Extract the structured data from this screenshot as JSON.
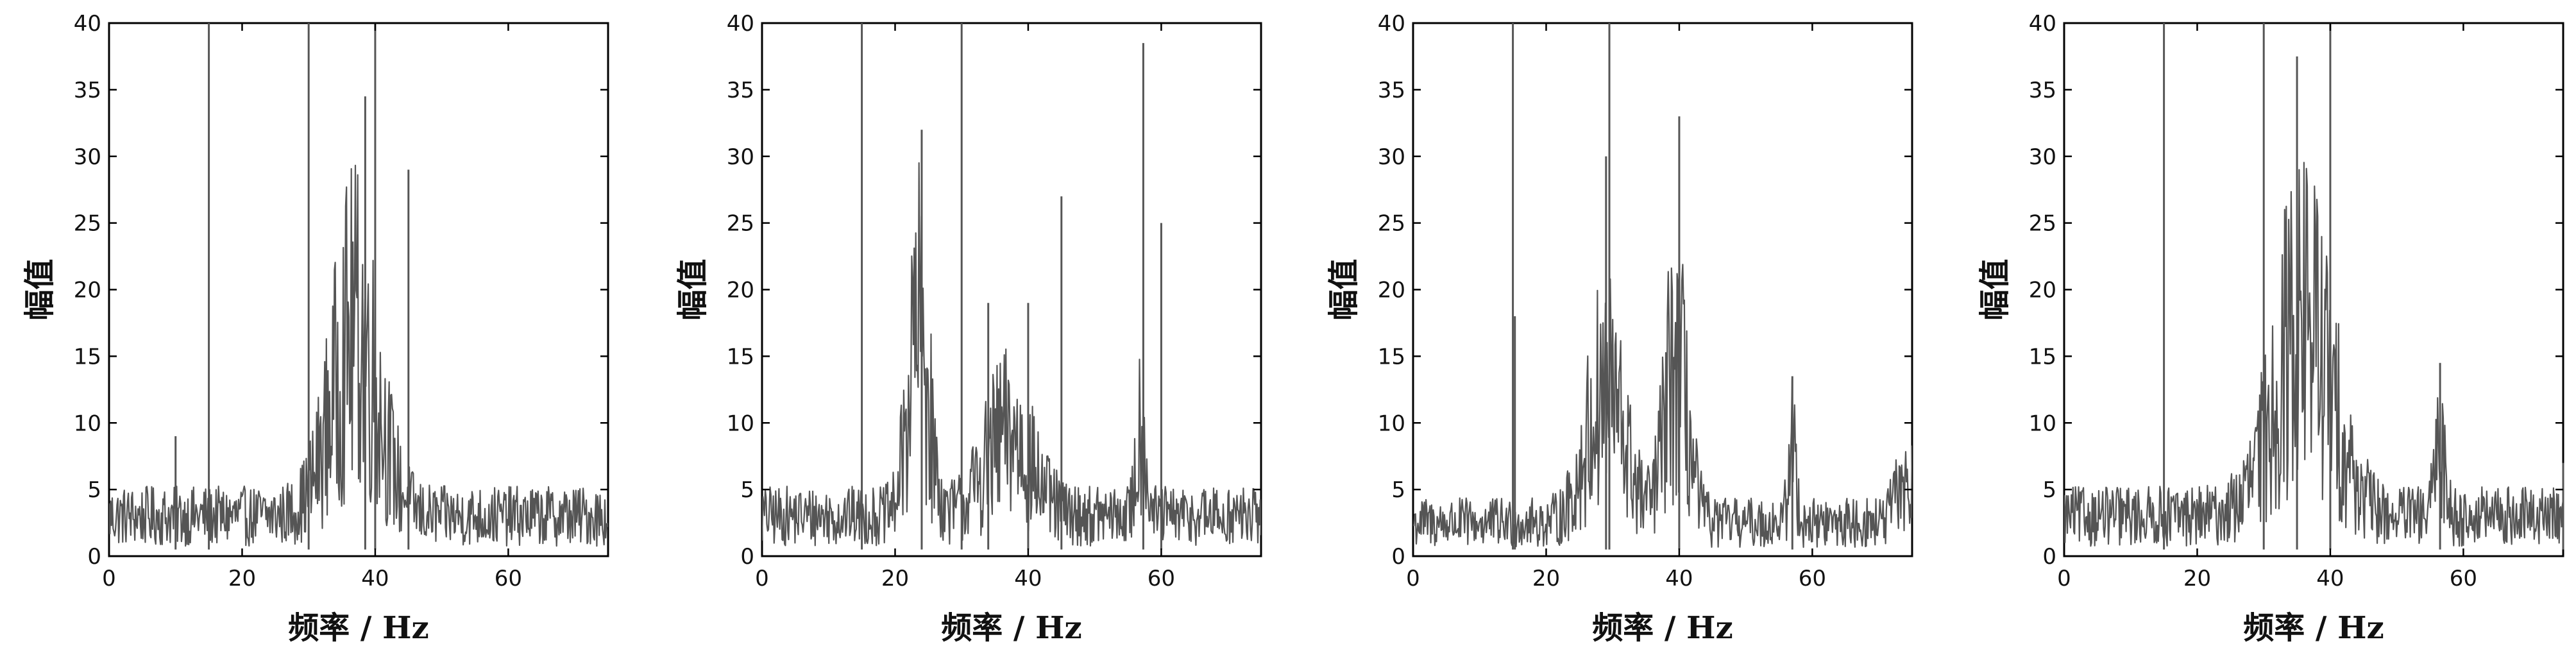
{
  "line_color": "#555555",
  "chart_data": [
    {
      "type": "line",
      "xlabel": "频率 / Hz",
      "ylabel": "幅值",
      "xlim": [
        0,
        75
      ],
      "ylim": [
        0,
        40
      ],
      "xticks": [
        "0",
        "20",
        "40",
        "60"
      ],
      "yticks": [
        "0",
        "5",
        "10",
        "15",
        "20",
        "25",
        "30",
        "35",
        "40"
      ],
      "noise": {
        "base": 3.0,
        "bumps": [
          {
            "center": 37,
            "width": 5,
            "height": 14
          }
        ]
      },
      "peaks": [
        {
          "x": 15,
          "y": 40
        },
        {
          "x": 30,
          "y": 40
        },
        {
          "x": 38.5,
          "y": 34.5
        },
        {
          "x": 40,
          "y": 40
        },
        {
          "x": 45,
          "y": 29
        },
        {
          "x": 10,
          "y": 9
        }
      ]
    },
    {
      "type": "line",
      "xlabel": "频率 / Hz",
      "ylabel": "幅值",
      "xlim": [
        0,
        75
      ],
      "ylim": [
        0,
        40
      ],
      "xticks": [
        "0",
        "20",
        "40",
        "60"
      ],
      "yticks": [
        "0",
        "5",
        "10",
        "15",
        "20",
        "25",
        "30",
        "35",
        "40"
      ],
      "noise": {
        "base": 3.0,
        "bumps": [
          {
            "center": 23.5,
            "width": 2.2,
            "height": 14
          },
          {
            "center": 37,
            "width": 5,
            "height": 6
          },
          {
            "center": 57,
            "width": 1,
            "height": 7
          }
        ]
      },
      "peaks": [
        {
          "x": 15,
          "y": 40
        },
        {
          "x": 24,
          "y": 32
        },
        {
          "x": 30,
          "y": 40
        },
        {
          "x": 34,
          "y": 19
        },
        {
          "x": 40,
          "y": 19
        },
        {
          "x": 45,
          "y": 27
        },
        {
          "x": 57.3,
          "y": 38.5
        },
        {
          "x": 60,
          "y": 25
        }
      ]
    },
    {
      "type": "line",
      "xlabel": "频率 / Hz",
      "ylabel": "幅值",
      "xlim": [
        0,
        75
      ],
      "ylim": [
        0,
        40
      ],
      "xticks": [
        "0",
        "20",
        "40",
        "60"
      ],
      "yticks": [
        "0",
        "5",
        "10",
        "15",
        "20",
        "25",
        "30",
        "35",
        "40"
      ],
      "noise": {
        "base": 2.5,
        "bumps": [
          {
            "center": 29,
            "width": 4,
            "height": 10
          },
          {
            "center": 39.5,
            "width": 2.5,
            "height": 12
          },
          {
            "center": 57,
            "width": 0.8,
            "height": 6
          },
          {
            "center": 74,
            "width": 2,
            "height": 3
          }
        ]
      },
      "peaks": [
        {
          "x": 15,
          "y": 40
        },
        {
          "x": 15.3,
          "y": 18
        },
        {
          "x": 29.5,
          "y": 40
        },
        {
          "x": 29,
          "y": 30
        },
        {
          "x": 40,
          "y": 33
        },
        {
          "x": 57,
          "y": 13.5
        }
      ]
    },
    {
      "type": "line",
      "xlabel": "频率 / Hz",
      "ylabel": "幅值",
      "xlim": [
        0,
        75
      ],
      "ylim": [
        0,
        40
      ],
      "xticks": [
        "0",
        "20",
        "40",
        "60"
      ],
      "yticks": [
        "0",
        "5",
        "10",
        "15",
        "20",
        "25",
        "30",
        "35",
        "40"
      ],
      "noise": {
        "base": 3.0,
        "bumps": [
          {
            "center": 36,
            "width": 6,
            "height": 15
          },
          {
            "center": 56.5,
            "width": 1,
            "height": 6
          }
        ]
      },
      "peaks": [
        {
          "x": 15,
          "y": 40
        },
        {
          "x": 30,
          "y": 40
        },
        {
          "x": 35,
          "y": 37.5
        },
        {
          "x": 40,
          "y": 40
        },
        {
          "x": 56.5,
          "y": 14.5
        },
        {
          "x": 75,
          "y": 7
        }
      ]
    }
  ]
}
